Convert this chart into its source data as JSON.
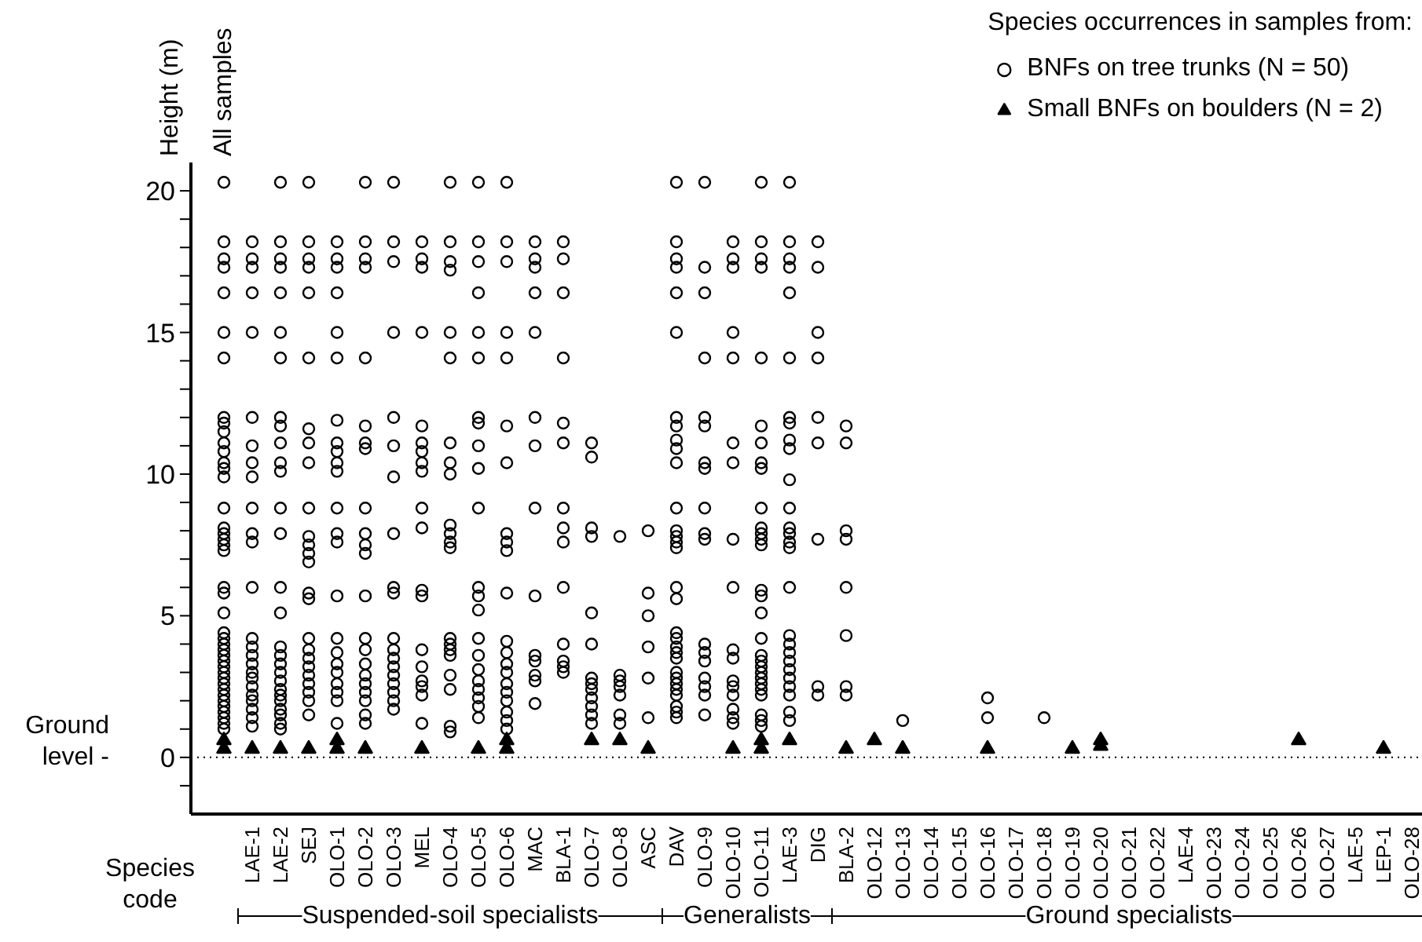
{
  "chart_data": {
    "type": "scatter",
    "ylabel": "Height (m)",
    "legend_title": "Species occurrences in samples from:",
    "legend": "top right",
    "categories": [
      "All samples",
      "LAE-1",
      "LAE-2",
      "SEJ",
      "OLO-1",
      "OLO-2",
      "OLO-3",
      "MEL",
      "OLO-4",
      "OLO-5",
      "OLO-6",
      "MAC",
      "BLA-1",
      "OLO-7",
      "OLO-8",
      "ASC",
      "DAV",
      "OLO-9",
      "OLO-10",
      "OLO-11",
      "LAE-3",
      "DIG",
      "BLA-2",
      "OLO-12",
      "OLO-13",
      "OLO-14",
      "OLO-15",
      "OLO-16",
      "OLO-17",
      "OLO-18",
      "OLO-19",
      "OLO-20",
      "OLO-21",
      "OLO-22",
      "LAE-4",
      "OLO-23",
      "OLO-24",
      "OLO-25",
      "OLO-26",
      "OLO-27",
      "LAE-5",
      "LEP-1",
      "OLO-28"
    ],
    "ylim": [
      -2,
      21
    ],
    "yticks": [
      {
        "value": -1,
        "label": null
      },
      0,
      {
        "value": 1,
        "label": null
      },
      {
        "value": 2,
        "label": null
      },
      {
        "value": 3,
        "label": null
      },
      {
        "value": 4,
        "label": null
      },
      5,
      {
        "value": 6,
        "label": null
      },
      {
        "value": 7,
        "label": null
      },
      {
        "value": 8,
        "label": null
      },
      {
        "value": 9,
        "label": null
      },
      10,
      {
        "value": 11,
        "label": null
      },
      {
        "value": 12,
        "label": null
      },
      {
        "value": 13,
        "label": null
      },
      {
        "value": 14,
        "label": null
      },
      15,
      {
        "value": 16,
        "label": null
      },
      {
        "value": 17,
        "label": null
      },
      {
        "value": 18,
        "label": null
      },
      {
        "value": 19,
        "label": null
      },
      20
    ],
    "grid": false,
    "ref_lines": [
      {
        "axis": "y",
        "value": 0,
        "label": null,
        "color": "#000000",
        "line_style": "dotted"
      }
    ],
    "annotations": [
      "Ground level -",
      "Species code",
      "Suspended-soil specialists",
      "Generalists",
      "Ground specialists"
    ],
    "series": [
      {
        "name": "BNFs on tree trunks (N = 50)",
        "color": "#000000",
        "marker": "circle",
        "x": [
          "All samples",
          "All samples",
          "All samples",
          "All samples",
          "All samples",
          "All samples",
          "All samples",
          "All samples",
          "All samples",
          "All samples",
          "All samples",
          "All samples",
          "All samples",
          "All samples",
          "All samples",
          "All samples",
          "All samples",
          "All samples",
          "All samples",
          "All samples",
          "All samples",
          "All samples",
          "All samples",
          "All samples",
          "All samples",
          "All samples",
          "All samples",
          "All samples",
          "All samples",
          "All samples",
          "All samples",
          "All samples",
          "All samples",
          "All samples",
          "All samples",
          "All samples",
          "All samples",
          "All samples",
          "All samples",
          "All samples",
          "All samples",
          "All samples",
          "LAE-1",
          "LAE-1",
          "LAE-1",
          "LAE-1",
          "LAE-1",
          "LAE-1",
          "LAE-1",
          "LAE-1",
          "LAE-1",
          "LAE-1",
          "LAE-1",
          "LAE-1",
          "LAE-1",
          "LAE-1",
          "LAE-1",
          "LAE-1",
          "LAE-1",
          "LAE-1",
          "LAE-1",
          "LAE-1",
          "LAE-1",
          "LAE-1",
          "LAE-1",
          "LAE-1",
          "LAE-1",
          "LAE-2",
          "LAE-2",
          "LAE-2",
          "LAE-2",
          "LAE-2",
          "LAE-2",
          "LAE-2",
          "LAE-2",
          "LAE-2",
          "LAE-2",
          "LAE-2",
          "LAE-2",
          "LAE-2",
          "LAE-2",
          "LAE-2",
          "LAE-2",
          "LAE-2",
          "LAE-2",
          "LAE-2",
          "LAE-2",
          "LAE-2",
          "LAE-2",
          "LAE-2",
          "LAE-2",
          "LAE-2",
          "LAE-2",
          "LAE-2",
          "LAE-2",
          "SEJ",
          "SEJ",
          "SEJ",
          "SEJ",
          "SEJ",
          "SEJ",
          "SEJ",
          "SEJ",
          "SEJ",
          "SEJ",
          "SEJ",
          "SEJ",
          "SEJ",
          "SEJ",
          "SEJ",
          "SEJ",
          "SEJ",
          "SEJ",
          "SEJ",
          "SEJ",
          "SEJ",
          "SEJ",
          "SEJ",
          "SEJ",
          "SEJ",
          "OLO-1",
          "OLO-1",
          "OLO-1",
          "OLO-1",
          "OLO-1",
          "OLO-1",
          "OLO-1",
          "OLO-1",
          "OLO-1",
          "OLO-1",
          "OLO-1",
          "OLO-1",
          "OLO-1",
          "OLO-1",
          "OLO-1",
          "OLO-1",
          "OLO-1",
          "OLO-1",
          "OLO-1",
          "OLO-1",
          "OLO-1",
          "OLO-1",
          "OLO-1",
          "OLO-2",
          "OLO-2",
          "OLO-2",
          "OLO-2",
          "OLO-2",
          "OLO-2",
          "OLO-2",
          "OLO-2",
          "OLO-2",
          "OLO-2",
          "OLO-2",
          "OLO-2",
          "OLO-2",
          "OLO-2",
          "OLO-2",
          "OLO-2",
          "OLO-2",
          "OLO-2",
          "OLO-2",
          "OLO-2",
          "OLO-2",
          "OLO-2",
          "OLO-3",
          "OLO-3",
          "OLO-3",
          "OLO-3",
          "OLO-3",
          "OLO-3",
          "OLO-3",
          "OLO-3",
          "OLO-3",
          "OLO-3",
          "OLO-3",
          "OLO-3",
          "OLO-3",
          "OLO-3",
          "OLO-3",
          "OLO-3",
          "OLO-3",
          "OLO-3",
          "OLO-3",
          "MEL",
          "MEL",
          "MEL",
          "MEL",
          "MEL",
          "MEL",
          "MEL",
          "MEL",
          "MEL",
          "MEL",
          "MEL",
          "MEL",
          "MEL",
          "MEL",
          "MEL",
          "MEL",
          "MEL",
          "MEL",
          "MEL",
          "OLO-4",
          "OLO-4",
          "OLO-4",
          "OLO-4",
          "OLO-4",
          "OLO-4",
          "OLO-4",
          "OLO-4",
          "OLO-4",
          "OLO-4",
          "OLO-4",
          "OLO-4",
          "OLO-4",
          "OLO-4",
          "OLO-4",
          "OLO-4",
          "OLO-4",
          "OLO-4",
          "OLO-4",
          "OLO-4",
          "OLO-4",
          "OLO-5",
          "OLO-5",
          "OLO-5",
          "OLO-5",
          "OLO-5",
          "OLO-5",
          "OLO-5",
          "OLO-5",
          "OLO-5",
          "OLO-5",
          "OLO-5",
          "OLO-5",
          "OLO-5",
          "OLO-5",
          "OLO-5",
          "OLO-5",
          "OLO-5",
          "OLO-5",
          "OLO-5",
          "OLO-5",
          "OLO-5",
          "OLO-5",
          "OLO-6",
          "OLO-6",
          "OLO-6",
          "OLO-6",
          "OLO-6",
          "OLO-6",
          "OLO-6",
          "OLO-6",
          "OLO-6",
          "OLO-6",
          "OLO-6",
          "OLO-6",
          "OLO-6",
          "OLO-6",
          "OLO-6",
          "OLO-6",
          "OLO-6",
          "OLO-6",
          "OLO-6",
          "OLO-6",
          "OLO-6",
          "MAC",
          "MAC",
          "MAC",
          "MAC",
          "MAC",
          "MAC",
          "MAC",
          "MAC",
          "MAC",
          "MAC",
          "MAC",
          "MAC",
          "MAC",
          "MAC",
          "BLA-1",
          "BLA-1",
          "BLA-1",
          "BLA-1",
          "BLA-1",
          "BLA-1",
          "BLA-1",
          "BLA-1",
          "BLA-1",
          "BLA-1",
          "BLA-1",
          "BLA-1",
          "BLA-1",
          "BLA-1",
          "OLO-7",
          "OLO-7",
          "OLO-7",
          "OLO-7",
          "OLO-7",
          "OLO-7",
          "OLO-7",
          "OLO-7",
          "OLO-7",
          "OLO-7",
          "OLO-7",
          "OLO-7",
          "OLO-7",
          "OLO-8",
          "OLO-8",
          "OLO-8",
          "OLO-8",
          "OLO-8",
          "OLO-8",
          "OLO-8",
          "ASC",
          "ASC",
          "ASC",
          "ASC",
          "ASC",
          "ASC",
          "DAV",
          "DAV",
          "DAV",
          "DAV",
          "DAV",
          "DAV",
          "DAV",
          "DAV",
          "DAV",
          "DAV",
          "DAV",
          "DAV",
          "DAV",
          "DAV",
          "DAV",
          "DAV",
          "DAV",
          "DAV",
          "DAV",
          "DAV",
          "DAV",
          "DAV",
          "DAV",
          "DAV",
          "DAV",
          "DAV",
          "DAV",
          "DAV",
          "DAV",
          "DAV",
          "DAV",
          "OLO-9",
          "OLO-9",
          "OLO-9",
          "OLO-9",
          "OLO-9",
          "OLO-9",
          "OLO-9",
          "OLO-9",
          "OLO-9",
          "OLO-9",
          "OLO-9",
          "OLO-9",
          "OLO-9",
          "OLO-9",
          "OLO-9",
          "OLO-9",
          "OLO-9",
          "OLO-9",
          "OLO-10",
          "OLO-10",
          "OLO-10",
          "OLO-10",
          "OLO-10",
          "OLO-10",
          "OLO-10",
          "OLO-10",
          "OLO-10",
          "OLO-10",
          "OLO-10",
          "OLO-10",
          "OLO-10",
          "OLO-10",
          "OLO-10",
          "OLO-10",
          "OLO-10",
          "OLO-11",
          "OLO-11",
          "OLO-11",
          "OLO-11",
          "OLO-11",
          "OLO-11",
          "OLO-11",
          "OLO-11",
          "OLO-11",
          "OLO-11",
          "OLO-11",
          "OLO-11",
          "OLO-11",
          "OLO-11",
          "OLO-11",
          "OLO-11",
          "OLO-11",
          "OLO-11",
          "OLO-11",
          "OLO-11",
          "OLO-11",
          "OLO-11",
          "OLO-11",
          "OLO-11",
          "OLO-11",
          "OLO-11",
          "OLO-11",
          "OLO-11",
          "OLO-11",
          "LAE-3",
          "LAE-3",
          "LAE-3",
          "LAE-3",
          "LAE-3",
          "LAE-3",
          "LAE-3",
          "LAE-3",
          "LAE-3",
          "LAE-3",
          "LAE-3",
          "LAE-3",
          "LAE-3",
          "LAE-3",
          "LAE-3",
          "LAE-3",
          "LAE-3",
          "LAE-3",
          "LAE-3",
          "LAE-3",
          "LAE-3",
          "LAE-3",
          "LAE-3",
          "LAE-3",
          "LAE-3",
          "LAE-3",
          "LAE-3",
          "DIG",
          "DIG",
          "DIG",
          "DIG",
          "DIG",
          "DIG",
          "DIG",
          "DIG",
          "DIG",
          "BLA-2",
          "BLA-2",
          "BLA-2",
          "BLA-2",
          "BLA-2",
          "BLA-2",
          "BLA-2",
          "BLA-2",
          "OLO-13",
          "OLO-16",
          "OLO-16",
          "OLO-18"
        ],
        "values": [
          20.3,
          18.2,
          17.6,
          17.3,
          16.4,
          15.0,
          14.1,
          12.0,
          11.8,
          11.5,
          11.1,
          10.8,
          10.4,
          10.2,
          9.9,
          8.8,
          8.1,
          7.9,
          7.7,
          7.5,
          7.3,
          6.0,
          5.8,
          5.1,
          4.4,
          4.2,
          4.0,
          3.8,
          3.6,
          3.4,
          3.2,
          3.0,
          2.8,
          2.6,
          2.4,
          2.2,
          2.0,
          1.8,
          1.6,
          1.4,
          1.2,
          1.0,
          18.2,
          17.6,
          17.3,
          16.4,
          15.0,
          12.0,
          11.0,
          10.4,
          9.9,
          8.8,
          7.9,
          7.6,
          6.0,
          4.2,
          3.9,
          3.6,
          3.3,
          3.0,
          2.8,
          2.5,
          2.2,
          2.0,
          1.7,
          1.4,
          1.1,
          20.3,
          18.2,
          17.6,
          17.3,
          16.4,
          15.0,
          14.1,
          12.0,
          11.7,
          11.1,
          10.4,
          10.1,
          8.8,
          7.9,
          6.0,
          5.1,
          3.9,
          3.6,
          3.3,
          3.0,
          2.7,
          2.4,
          2.2,
          2.0,
          1.7,
          1.5,
          1.2,
          1.0,
          20.3,
          18.2,
          17.6,
          17.3,
          16.4,
          14.1,
          11.6,
          11.1,
          10.4,
          8.8,
          7.8,
          7.5,
          7.2,
          6.9,
          5.8,
          5.6,
          4.2,
          3.8,
          3.5,
          3.2,
          2.9,
          2.6,
          2.3,
          2.0,
          1.5,
          18.2,
          17.6,
          17.3,
          16.4,
          15.0,
          14.1,
          11.9,
          11.1,
          10.8,
          10.4,
          10.1,
          8.8,
          7.9,
          7.6,
          5.7,
          4.2,
          3.7,
          3.3,
          3.0,
          2.6,
          2.3,
          2.0,
          1.2,
          20.3,
          18.2,
          17.6,
          17.3,
          14.1,
          11.7,
          11.1,
          10.9,
          8.8,
          7.9,
          7.5,
          7.2,
          5.7,
          4.2,
          3.8,
          3.3,
          2.9,
          2.6,
          2.3,
          2.0,
          1.5,
          1.2,
          20.3,
          18.2,
          17.5,
          15.0,
          12.0,
          11.0,
          9.9,
          7.9,
          6.0,
          5.8,
          4.2,
          3.8,
          3.5,
          3.2,
          2.9,
          2.6,
          2.3,
          2.0,
          1.7,
          18.2,
          17.6,
          17.3,
          15.0,
          11.7,
          11.1,
          10.8,
          10.4,
          10.1,
          8.8,
          8.1,
          5.9,
          5.7,
          3.8,
          3.2,
          2.7,
          2.5,
          2.2,
          1.2,
          20.3,
          18.2,
          17.5,
          17.2,
          15.0,
          14.1,
          11.1,
          10.4,
          10.0,
          8.2,
          7.9,
          7.6,
          7.4,
          4.2,
          4.0,
          3.8,
          3.6,
          2.9,
          2.4,
          1.1,
          0.9,
          20.3,
          18.2,
          17.5,
          16.4,
          15.0,
          14.1,
          12.0,
          11.8,
          11.0,
          10.2,
          8.8,
          6.0,
          5.7,
          5.2,
          4.2,
          3.6,
          3.1,
          2.7,
          2.4,
          2.1,
          1.8,
          1.4,
          20.3,
          18.2,
          17.5,
          15.0,
          14.1,
          11.7,
          10.4,
          7.9,
          7.6,
          7.3,
          5.8,
          4.1,
          3.7,
          3.3,
          3.0,
          2.6,
          2.3,
          2.0,
          1.6,
          1.3,
          1.0,
          18.2,
          17.6,
          17.3,
          16.4,
          15.0,
          12.0,
          11.0,
          8.8,
          5.7,
          3.6,
          3.4,
          2.9,
          2.7,
          1.9,
          18.2,
          17.6,
          16.4,
          14.1,
          11.8,
          11.1,
          8.8,
          8.1,
          7.6,
          6.0,
          4.0,
          3.4,
          3.2,
          3.0,
          11.1,
          10.6,
          8.1,
          7.8,
          5.1,
          4.0,
          2.8,
          2.6,
          2.4,
          2.1,
          1.8,
          1.5,
          1.2,
          7.8,
          2.9,
          2.7,
          2.5,
          2.2,
          1.5,
          1.2,
          8.0,
          5.8,
          5.0,
          3.9,
          2.8,
          1.4,
          20.3,
          18.2,
          17.6,
          17.3,
          16.4,
          15.0,
          12.0,
          11.7,
          11.2,
          10.9,
          10.4,
          8.8,
          8.0,
          7.8,
          7.6,
          7.4,
          6.0,
          5.6,
          4.4,
          4.2,
          3.9,
          3.7,
          3.5,
          3.0,
          2.8,
          2.6,
          2.4,
          2.2,
          1.8,
          1.6,
          1.4,
          20.3,
          17.3,
          16.4,
          14.1,
          12.0,
          11.7,
          10.4,
          10.2,
          8.8,
          7.9,
          7.7,
          4.0,
          3.7,
          3.4,
          2.8,
          2.5,
          2.2,
          1.5,
          18.2,
          17.6,
          17.3,
          15.0,
          14.1,
          11.1,
          10.4,
          7.7,
          6.0,
          3.8,
          3.5,
          2.7,
          2.5,
          2.2,
          1.7,
          1.4,
          1.2,
          20.3,
          18.2,
          17.6,
          17.3,
          14.1,
          11.7,
          11.1,
          10.4,
          10.2,
          8.8,
          8.1,
          7.9,
          7.7,
          7.5,
          5.9,
          5.7,
          5.1,
          4.2,
          3.6,
          3.4,
          3.2,
          3.0,
          2.8,
          2.6,
          2.4,
          2.2,
          1.5,
          1.3,
          1.1,
          20.3,
          18.2,
          17.6,
          17.3,
          16.4,
          14.1,
          12.0,
          11.8,
          11.2,
          10.9,
          9.8,
          8.8,
          8.1,
          7.9,
          7.6,
          7.4,
          6.0,
          4.3,
          4.0,
          3.7,
          3.4,
          3.1,
          2.8,
          2.5,
          2.2,
          1.6,
          1.3,
          18.2,
          17.3,
          15.0,
          14.1,
          12.0,
          11.1,
          7.7,
          2.5,
          2.2,
          11.7,
          11.1,
          8.0,
          7.7,
          6.0,
          4.3,
          2.5,
          2.2,
          1.3,
          2.1,
          1.4,
          1.4
        ]
      },
      {
        "name": "Small BNFs on boulders (N = 2)",
        "color": "#000000",
        "marker": "triangle",
        "x": [
          "All samples",
          "All samples",
          "LAE-1",
          "LAE-2",
          "SEJ",
          "OLO-1",
          "OLO-1",
          "OLO-2",
          "MEL",
          "OLO-5",
          "OLO-6",
          "OLO-6",
          "OLO-7",
          "OLO-8",
          "ASC",
          "OLO-10",
          "OLO-11",
          "OLO-11",
          "LAE-3",
          "BLA-2",
          "OLO-12",
          "OLO-13",
          "OLO-16",
          "OLO-19",
          "OLO-20",
          "OLO-20",
          "OLO-26",
          "LEP-1"
        ],
        "values": [
          0.6,
          0.3,
          0.3,
          0.3,
          0.3,
          0.6,
          0.3,
          0.3,
          0.3,
          0.3,
          0.6,
          0.3,
          0.6,
          0.6,
          0.3,
          0.3,
          0.6,
          0.3,
          0.6,
          0.3,
          0.6,
          0.3,
          0.3,
          0.3,
          0.6,
          0.4,
          0.6,
          0.3
        ]
      }
    ]
  }
}
